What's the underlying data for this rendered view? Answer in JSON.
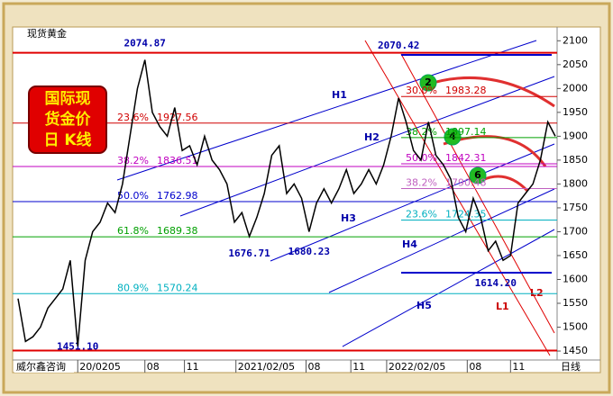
{
  "chart_data": {
    "type": "line",
    "series": [
      {
        "name": "现货黄金",
        "color": "#000000",
        "values": [
          1560,
          1470,
          1480,
          1500,
          1540,
          1560,
          1580,
          1640,
          1460,
          1640,
          1700,
          1720,
          1760,
          1740,
          1800,
          1900,
          2000,
          2060,
          1950,
          1920,
          1900,
          1960,
          1870,
          1880,
          1840,
          1900,
          1850,
          1830,
          1800,
          1720,
          1740,
          1690,
          1730,
          1780,
          1860,
          1880,
          1780,
          1800,
          1770,
          1700,
          1760,
          1790,
          1760,
          1790,
          1830,
          1780,
          1800,
          1830,
          1800,
          1840,
          1900,
          1980,
          1930,
          1870,
          1850,
          1930,
          1860,
          1840,
          1810,
          1730,
          1700,
          1770,
          1730,
          1660,
          1680,
          1640,
          1650,
          1760,
          1780,
          1800,
          1850,
          1930,
          1900
        ]
      }
    ],
    "xlim": [
      0,
      72
    ],
    "xticks": [
      {
        "value": 8,
        "label": "20/0205"
      },
      {
        "value": 17,
        "label": "08"
      },
      {
        "value": 22.3,
        "label": "11"
      },
      {
        "value": 29.2,
        "label": "2021/02/05"
      },
      {
        "value": 38.6,
        "label": "08"
      },
      {
        "value": 44.6,
        "label": "11"
      },
      {
        "value": 49.4,
        "label": "2022/02/05"
      },
      {
        "value": 60.2,
        "label": "08"
      },
      {
        "value": 66,
        "label": "11"
      }
    ],
    "ylim": [
      1435,
      2110
    ],
    "yticks": [
      1450,
      1500,
      1550,
      1600,
      1650,
      1700,
      1750,
      1800,
      1850,
      1900,
      1950,
      2000,
      2050,
      2100
    ],
    "extremes": [
      {
        "label": "2074.87",
        "value": 2074.87,
        "index": 17,
        "line": "#e00000",
        "span": "full"
      },
      {
        "label": "2070.42",
        "value": 2070.42,
        "index": 51,
        "line": "#0000cc",
        "span": "right"
      },
      {
        "label": "1451.10",
        "value": 1451.1,
        "index": 8,
        "line": "#e00000",
        "span": "full"
      },
      {
        "label": "1614.20",
        "value": 1614.2,
        "index": 64,
        "line": "#0000cc",
        "span": "right"
      },
      {
        "label": "1676.71",
        "value": 1676.71,
        "index": 31,
        "line": null,
        "span": null
      },
      {
        "label": "1680.23",
        "value": 1680.23,
        "index": 39,
        "line": null,
        "span": null
      }
    ],
    "fib_left": [
      {
        "pct": "23.6%",
        "price": "1927.56",
        "value": 1927.56,
        "color": "#d00000"
      },
      {
        "pct": "38.2%",
        "price": "1836.51",
        "value": 1836.51,
        "color": "#c000c0"
      },
      {
        "pct": "50.0%",
        "price": "1762.98",
        "value": 1762.98,
        "color": "#0000cc"
      },
      {
        "pct": "61.8%",
        "price": "1689.38",
        "value": 1689.38,
        "color": "#00a000"
      },
      {
        "pct": "80.9%",
        "price": "1570.24",
        "value": 1570.24,
        "color": "#00b0c0"
      }
    ],
    "fib_right": [
      {
        "pct": "30.0%",
        "price": "1983.28",
        "value": 1983.28,
        "color": "#d00000"
      },
      {
        "pct": "38.2%",
        "price": "1897.14",
        "value": 1897.14,
        "color": "#00a000"
      },
      {
        "pct": "50.0%",
        "price": "1842.31",
        "value": 1842.31,
        "color": "#c000c0"
      },
      {
        "pct": "38.2%",
        "price": "1790.48",
        "value": 1790.48,
        "color": "#c060c0"
      },
      {
        "pct": "23.6%",
        "price": "1724.35",
        "value": 1724.35,
        "color": "#00b0c0"
      }
    ],
    "channels": [
      "H1",
      "H2",
      "H3",
      "H4",
      "H5",
      "L1",
      "L2"
    ],
    "markers": [
      "2",
      "4",
      "6"
    ],
    "badge": [
      "国际现",
      "货金价",
      "日  K线"
    ],
    "source": "威尔鑫咨询",
    "period": "日线"
  }
}
